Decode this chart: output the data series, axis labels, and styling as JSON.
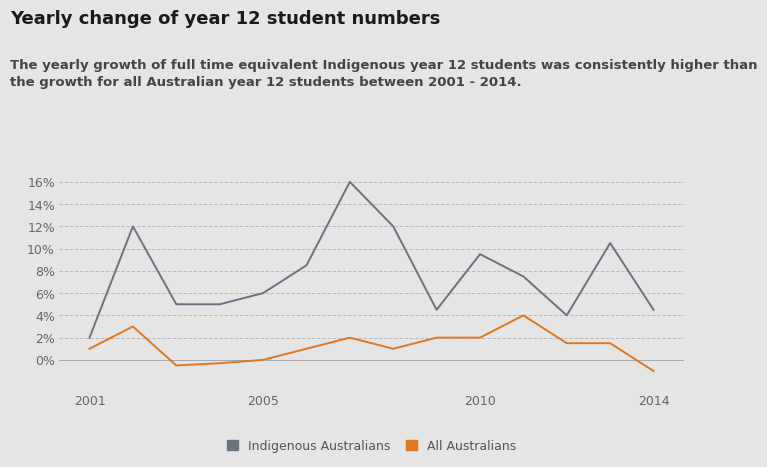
{
  "title": "Yearly change of year 12 student numbers",
  "subtitle": "The yearly growth of full time equivalent Indigenous year 12 students was consistently higher than\nthe growth for all Australian year 12 students between 2001 - 2014.",
  "years": [
    2001,
    2002,
    2003,
    2004,
    2005,
    2006,
    2007,
    2008,
    2009,
    2010,
    2011,
    2012,
    2013,
    2014
  ],
  "indigenous": [
    2.0,
    12.0,
    5.0,
    5.0,
    6.0,
    8.5,
    16.0,
    12.0,
    4.5,
    9.5,
    7.5,
    4.0,
    10.5,
    4.5
  ],
  "all_australians": [
    1.0,
    3.0,
    -0.5,
    -0.3,
    0.0,
    1.0,
    2.0,
    1.0,
    2.0,
    2.0,
    4.0,
    1.5,
    1.5,
    -1.0
  ],
  "indigenous_color": "#6b7280",
  "all_color": "#e07820",
  "background_color": "#e5e5e5",
  "ylim": [
    -2.5,
    17.5
  ],
  "yticks": [
    0,
    2,
    4,
    6,
    8,
    10,
    12,
    14,
    16
  ],
  "legend_indigenous": "Indigenous Australians",
  "legend_all": "All Australians",
  "title_fontsize": 13,
  "subtitle_fontsize": 9.5
}
